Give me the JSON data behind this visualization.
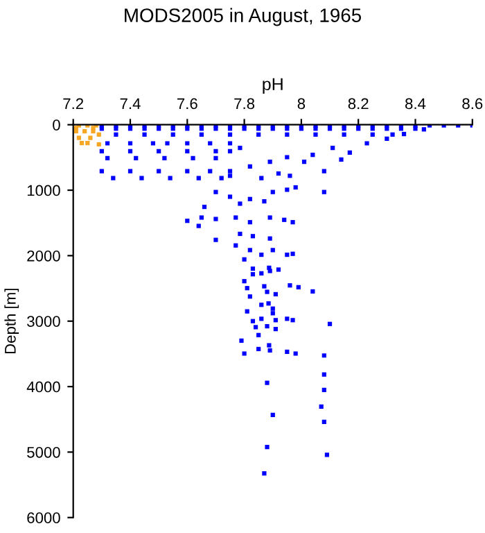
{
  "chart_data": {
    "type": "scatter",
    "title": "MODS2005 in August, 1965",
    "xlabel": "pH",
    "ylabel": "Depth [m]",
    "xlim": [
      7.2,
      8.6
    ],
    "xticks": [
      7.2,
      7.4,
      7.6,
      7.8,
      8,
      8.2,
      8.4,
      8.6
    ],
    "ylim": [
      6000,
      0
    ],
    "yticks": [
      0,
      1000,
      2000,
      3000,
      4000,
      5000,
      6000
    ],
    "marker": "square",
    "grid": false,
    "legend": false,
    "series": [
      {
        "color": "#0000ff",
        "x": [
          7.3,
          7.35,
          7.4,
          7.45,
          7.5,
          7.55,
          7.6,
          7.65,
          7.7,
          7.75,
          7.8,
          7.85,
          7.9,
          7.95,
          8.0,
          8.05,
          8.1,
          8.15,
          8.2,
          8.25,
          8.3,
          8.35,
          8.4,
          8.45,
          8.5,
          8.55,
          8.6,
          7.3,
          7.35,
          7.4,
          7.45,
          7.5,
          7.55,
          7.6,
          7.65,
          7.7,
          7.75,
          7.8,
          7.85,
          7.9,
          7.95,
          8.0,
          8.05,
          8.1,
          8.15,
          8.2,
          8.25,
          8.3,
          8.35,
          8.4,
          7.35,
          7.45,
          7.55,
          7.65,
          7.75,
          7.85,
          7.95,
          8.05,
          8.15,
          8.25,
          8.32,
          7.32,
          7.4,
          7.48,
          7.53,
          7.6,
          7.68,
          7.75,
          7.3,
          7.4,
          7.5,
          7.6,
          7.7,
          7.75,
          7.32,
          7.42,
          7.52,
          7.62,
          7.7,
          7.3,
          7.4,
          7.5,
          7.6,
          7.68,
          7.75,
          7.34,
          7.44,
          7.54,
          7.64,
          7.72,
          7.785,
          7.82,
          7.89,
          7.95,
          8.01,
          7.75,
          7.86,
          7.92,
          7.96,
          8.04,
          8.11,
          8.17,
          8.23,
          8.3,
          8.36,
          8.43,
          8.14,
          8.08,
          7.7,
          7.75,
          7.785,
          7.82,
          7.87,
          7.9,
          7.95,
          7.98,
          8.08,
          7.77,
          7.82,
          7.89,
          7.94,
          7.97,
          7.785,
          7.83,
          7.89,
          7.77,
          7.82,
          7.8,
          7.86,
          7.9,
          7.95,
          7.97,
          7.89,
          7.83,
          7.66,
          7.6,
          7.64,
          7.7,
          7.7,
          7.65,
          7.887,
          7.83,
          7.8,
          7.86,
          7.92,
          7.96,
          7.99,
          8.04,
          7.81,
          7.87,
          7.88,
          7.82,
          7.91,
          7.86,
          7.885,
          7.9,
          7.81,
          7.9,
          7.86,
          7.83,
          7.91,
          7.95,
          7.97,
          8.1,
          7.84,
          7.88,
          7.91,
          7.85,
          7.79,
          7.887,
          7.8,
          7.85,
          7.89,
          7.95,
          7.98,
          8.08,
          8.08,
          7.88,
          8.08,
          8.07,
          7.9,
          8.08,
          7.88,
          8.09,
          7.87
        ],
        "values": [
          10,
          10,
          10,
          10,
          10,
          10,
          10,
          10,
          10,
          10,
          10,
          10,
          10,
          10,
          10,
          10,
          10,
          10,
          10,
          10,
          10,
          10,
          10,
          10,
          10,
          10,
          10,
          60,
          60,
          60,
          60,
          60,
          60,
          60,
          60,
          60,
          60,
          60,
          60,
          60,
          60,
          60,
          60,
          60,
          60,
          60,
          60,
          60,
          60,
          60,
          150,
          150,
          150,
          150,
          150,
          150,
          150,
          150,
          150,
          150,
          150,
          284,
          284,
          284,
          284,
          284,
          284,
          284,
          404,
          404,
          404,
          404,
          404,
          404,
          511,
          511,
          511,
          511,
          511,
          709,
          709,
          709,
          709,
          709,
          709,
          816,
          816,
          816,
          816,
          816,
          355,
          638,
          567,
          496,
          567,
          780,
          816,
          745,
          780,
          461,
          355,
          426,
          284,
          213,
          142,
          71,
          532,
          709,
          1028,
          1100,
          1206,
          1135,
          1170,
          1028,
          993,
          957,
          1028,
          1418,
          1489,
          1418,
          1453,
          1489,
          1667,
          1702,
          1738,
          1844,
          1915,
          2057,
          1986,
          1915,
          1986,
          1972,
          2234,
          2199,
          1255,
          1468,
          1546,
          1440,
          1759,
          1418,
          2185,
          2284,
          2390,
          2270,
          2213,
          2454,
          2482,
          2546,
          2496,
          2468,
          2553,
          2624,
          2589,
          2751,
          2730,
          2809,
          2851,
          2879,
          2964,
          3000,
          2985,
          2964,
          2985,
          3043,
          3092,
          3078,
          3121,
          3213,
          3298,
          3369,
          3496,
          3426,
          3447,
          3468,
          3496,
          3525,
          3815,
          3943,
          4050,
          4305,
          4433,
          4539,
          4922,
          5043,
          5326
        ]
      },
      {
        "color": "#f5a623",
        "x": [
          7.22,
          7.25,
          7.28,
          7.21,
          7.27,
          7.21,
          7.24,
          7.27,
          7.29,
          7.22,
          7.26,
          7.23,
          7.25,
          7.29
        ],
        "values": [
          10,
          10,
          10,
          50,
          50,
          100,
          100,
          100,
          150,
          200,
          200,
          280,
          280,
          300
        ]
      }
    ]
  }
}
